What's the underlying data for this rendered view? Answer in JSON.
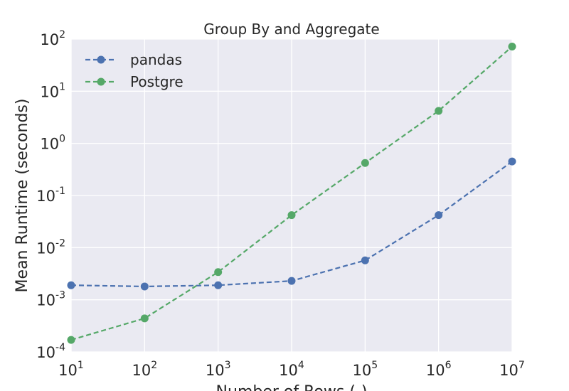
{
  "chart_data": {
    "type": "line",
    "title": "Group By and Aggregate",
    "xlabel": "Number of Rows (-)",
    "ylabel": "Mean Runtime (seconds)",
    "xscale": "log",
    "yscale": "log",
    "xlim": [
      10,
      10000000
    ],
    "ylim": [
      0.0001,
      100
    ],
    "x_ticks": [
      {
        "base": "10",
        "exp": "1"
      },
      {
        "base": "10",
        "exp": "2"
      },
      {
        "base": "10",
        "exp": "3"
      },
      {
        "base": "10",
        "exp": "4"
      },
      {
        "base": "10",
        "exp": "5"
      },
      {
        "base": "10",
        "exp": "6"
      },
      {
        "base": "10",
        "exp": "7"
      }
    ],
    "y_ticks": [
      {
        "base": "10",
        "exp": "-4"
      },
      {
        "base": "10",
        "exp": "-3"
      },
      {
        "base": "10",
        "exp": "-2"
      },
      {
        "base": "10",
        "exp": "-1"
      },
      {
        "base": "10",
        "exp": "0"
      },
      {
        "base": "10",
        "exp": "1"
      },
      {
        "base": "10",
        "exp": "2"
      }
    ],
    "x": [
      10,
      100,
      1000,
      10000,
      100000,
      1000000,
      10000000
    ],
    "series": [
      {
        "name": "pandas",
        "color": "#4c72b0",
        "values": [
          0.0019,
          0.0018,
          0.0019,
          0.0023,
          0.0057,
          0.042,
          0.45
        ]
      },
      {
        "name": "Postgre",
        "color": "#55a868",
        "values": [
          0.00017,
          0.00044,
          0.0034,
          0.042,
          0.42,
          4.2,
          72
        ]
      }
    ],
    "grid": true,
    "legend_position": "upper-left",
    "background_color": "#eaeaf2",
    "grid_color": "#ffffff",
    "line_style": "dashed",
    "marker": "circle"
  }
}
